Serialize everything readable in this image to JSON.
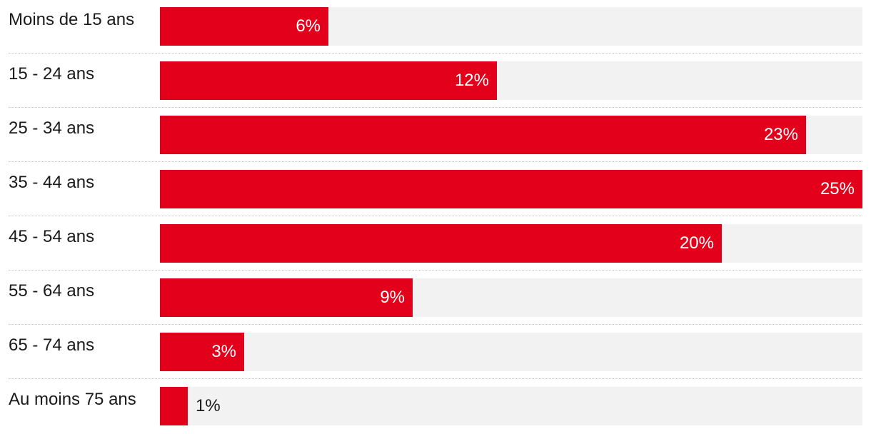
{
  "chart_data": {
    "type": "bar",
    "orientation": "horizontal",
    "categories": [
      "Moins de 15 ans",
      "15 - 24 ans",
      "25 - 34 ans",
      "35 - 44 ans",
      "45 - 54 ans",
      "55 - 64 ans",
      "65 - 74 ans",
      "Au moins 75 ans"
    ],
    "values": [
      6,
      12,
      23,
      25,
      20,
      9,
      3,
      1
    ],
    "labels": [
      "6%",
      "12%",
      "23%",
      "25%",
      "20%",
      "9%",
      "3%",
      "1%"
    ],
    "xlim": [
      0,
      25
    ],
    "unit": "%",
    "bar_color": "#e2001a",
    "track_color": "#f2f2f2",
    "title": "",
    "xlabel": "",
    "ylabel": ""
  }
}
